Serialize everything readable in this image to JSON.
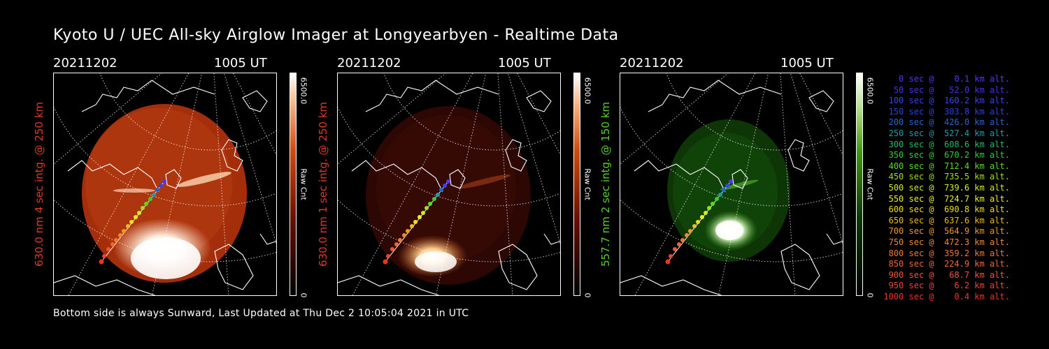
{
  "title": "Kyoto U / UEC All-sky Airglow Imager at Longyearbyen - Realtime Data",
  "panels": [
    {
      "date": "20211202",
      "time": "1005 UT",
      "label": "630.0 nm 4 sec intg. @ 250 km",
      "label_color": "#e03a1e",
      "cbar_max": "6500.0",
      "cbar_unit": "Raw Cnt",
      "cbar_min": "0",
      "tint": "red"
    },
    {
      "date": "20211202",
      "time": "1005 UT",
      "label": "630.0 nm 1 sec intg. @ 250 km",
      "label_color": "#e03a1e",
      "cbar_max": "6500.0",
      "cbar_unit": "Raw Cnt",
      "cbar_min": "0",
      "tint": "red"
    },
    {
      "date": "20211202",
      "time": "1005 UT",
      "label": "557.7 nm 2 sec intg. @ 150 km",
      "label_color": "#55d12a",
      "cbar_max": "6500.0",
      "cbar_unit": "Raw Cnt",
      "cbar_min": "0",
      "tint": "green"
    }
  ],
  "legend": [
    {
      "text": "   0 sec @    0.1 km alt.",
      "color": "#5533ff"
    },
    {
      "text": "  50 sec @   52.0 km alt.",
      "color": "#4433ee"
    },
    {
      "text": " 100 sec @  160.2 km alt.",
      "color": "#3344ee"
    },
    {
      "text": " 150 sec @  303.8 km alt.",
      "color": "#2244dd"
    },
    {
      "text": " 200 sec @  426.0 km alt.",
      "color": "#2266cc"
    },
    {
      "text": " 250 sec @  527.4 km alt.",
      "color": "#2299aa"
    },
    {
      "text": " 300 sec @  608.6 km alt.",
      "color": "#22bb66"
    },
    {
      "text": " 350 sec @  670.2 km alt.",
      "color": "#33cc33"
    },
    {
      "text": " 400 sec @  712.4 km alt.",
      "color": "#55dd22"
    },
    {
      "text": " 450 sec @  735.5 km alt.",
      "color": "#99e022"
    },
    {
      "text": " 500 sec @  739.6 km alt.",
      "color": "#ccee22"
    },
    {
      "text": " 550 sec @  724.7 km alt.",
      "color": "#eeee22"
    },
    {
      "text": " 600 sec @  690.8 km alt.",
      "color": "#eedd22"
    },
    {
      "text": " 650 sec @  637.6 km alt.",
      "color": "#eebb22"
    },
    {
      "text": " 700 sec @  564.9 km alt.",
      "color": "#ee9922"
    },
    {
      "text": " 750 sec @  472.3 km alt.",
      "color": "#ee8833"
    },
    {
      "text": " 800 sec @  359.2 km alt.",
      "color": "#ee7733"
    },
    {
      "text": " 850 sec @  224.9 km alt.",
      "color": "#ee6633"
    },
    {
      "text": " 900 sec @   68.7 km alt.",
      "color": "#ee5533"
    },
    {
      "text": " 950 sec @    6.2 km alt.",
      "color": "#ee4433"
    },
    {
      "text": "1000 sec @    0.4 km alt.",
      "color": "#ee3322"
    }
  ],
  "footer": "Bottom side is always Sunward, Last Updated at Thu Dec  2 10:05:04 2021 in UTC"
}
